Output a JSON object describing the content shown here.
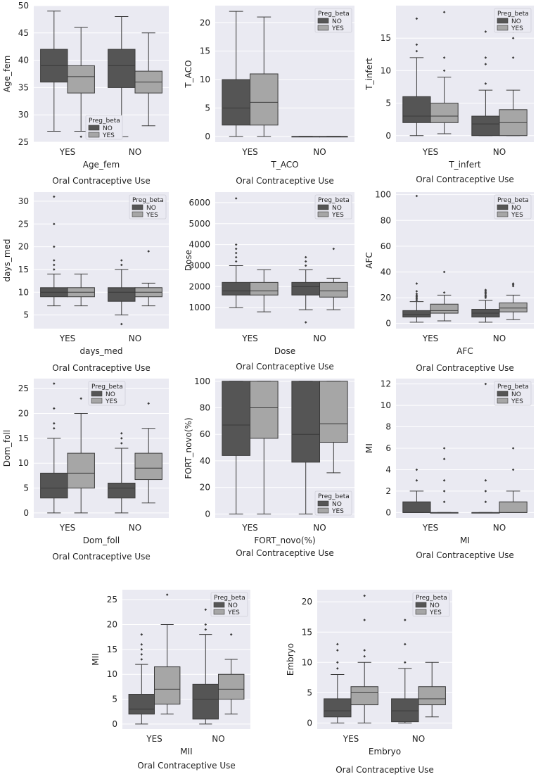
{
  "figure": {
    "caption": "Oral Contraceptive Use",
    "hue_title": "Preg_beta",
    "categories": [
      "YES",
      "NO"
    ],
    "hue_levels": [
      "NO",
      "YES"
    ],
    "colors": {
      "NO": "#555555",
      "YES": "#a6a6a6",
      "background": "#eaeaf2",
      "grid": "#ffffff",
      "line": "#3a3a3a"
    }
  },
  "chart_data": [
    {
      "type": "box",
      "title": "",
      "ylabel": "Age_fem",
      "xlabel": "Age_fem",
      "caption": "Oral Contraceptive Use",
      "ylim": [
        25,
        50
      ],
      "yticks": [
        25,
        30,
        35,
        40,
        45,
        50
      ],
      "categories": [
        "YES",
        "NO"
      ],
      "legend": "lower-center",
      "series": [
        {
          "name": "NO",
          "boxes": [
            {
              "category": "YES",
              "whislo": 27,
              "q1": 36,
              "med": 39,
              "q3": 42,
              "whishi": 49,
              "fliers": []
            },
            {
              "category": "NO",
              "whislo": 26,
              "q1": 35,
              "med": 39,
              "q3": 42,
              "whishi": 48,
              "fliers": []
            }
          ]
        },
        {
          "name": "YES",
          "boxes": [
            {
              "category": "YES",
              "whislo": 27,
              "q1": 34,
              "med": 37,
              "q3": 39,
              "whishi": 46,
              "fliers": [
                26
              ]
            },
            {
              "category": "NO",
              "whislo": 28,
              "q1": 34,
              "med": 36,
              "q3": 38,
              "whishi": 45,
              "fliers": []
            }
          ]
        }
      ]
    },
    {
      "type": "box",
      "title": "",
      "ylabel": "T_ACO",
      "xlabel": "T_ACO",
      "caption": "Oral Contraceptive Use",
      "ylim": [
        -1,
        23
      ],
      "yticks": [
        0,
        5,
        10,
        15,
        20
      ],
      "categories": [
        "YES",
        "NO"
      ],
      "legend": "top-right",
      "series": [
        {
          "name": "NO",
          "boxes": [
            {
              "category": "YES",
              "whislo": 0,
              "q1": 2,
              "med": 5,
              "q3": 10,
              "whishi": 22,
              "fliers": []
            },
            {
              "category": "NO",
              "whislo": 0,
              "q1": 0,
              "med": 0,
              "q3": 0,
              "whishi": 0,
              "fliers": []
            }
          ]
        },
        {
          "name": "YES",
          "boxes": [
            {
              "category": "YES",
              "whislo": 0,
              "q1": 2,
              "med": 6,
              "q3": 11,
              "whishi": 21,
              "fliers": []
            },
            {
              "category": "NO",
              "whislo": 0,
              "q1": 0,
              "med": 0,
              "q3": 0,
              "whishi": 0,
              "fliers": []
            }
          ]
        }
      ]
    },
    {
      "type": "box",
      "title": "",
      "ylabel": "T_infert",
      "xlabel": "T_infert",
      "caption": "Oral Contraceptive Use",
      "ylim": [
        -1,
        20
      ],
      "yticks": [
        0,
        5,
        10,
        15
      ],
      "categories": [
        "YES",
        "NO"
      ],
      "legend": "top-right",
      "series": [
        {
          "name": "NO",
          "boxes": [
            {
              "category": "YES",
              "whislo": 0,
              "q1": 2,
              "med": 3,
              "q3": 6,
              "whishi": 12,
              "fliers": [
                13,
                14,
                18
              ]
            },
            {
              "category": "NO",
              "whislo": 0,
              "q1": 0,
              "med": 1.8,
              "q3": 3,
              "whishi": 7,
              "fliers": [
                8,
                11,
                12,
                16
              ]
            }
          ]
        },
        {
          "name": "YES",
          "boxes": [
            {
              "category": "YES",
              "whislo": 0.3,
              "q1": 2,
              "med": 3,
              "q3": 5,
              "whishi": 9,
              "fliers": [
                10,
                12,
                19
              ]
            },
            {
              "category": "NO",
              "whislo": 0,
              "q1": 0,
              "med": 2,
              "q3": 4,
              "whishi": 7,
              "fliers": [
                12,
                15,
                16
              ]
            }
          ]
        }
      ]
    },
    {
      "type": "box",
      "title": "",
      "ylabel": "days_med",
      "xlabel": "days_med",
      "caption": "Oral Contraceptive Use",
      "ylim": [
        2,
        32
      ],
      "yticks": [
        5,
        10,
        15,
        20,
        25,
        30
      ],
      "categories": [
        "YES",
        "NO"
      ],
      "legend": "top-right",
      "series": [
        {
          "name": "NO",
          "boxes": [
            {
              "category": "YES",
              "whislo": 7,
              "q1": 9,
              "med": 10,
              "q3": 11,
              "whishi": 14,
              "fliers": [
                15,
                16,
                17,
                20,
                25,
                31
              ]
            },
            {
              "category": "NO",
              "whislo": 5,
              "q1": 8,
              "med": 10,
              "q3": 11,
              "whishi": 15,
              "fliers": [
                3,
                16,
                17
              ]
            }
          ]
        },
        {
          "name": "YES",
          "boxes": [
            {
              "category": "YES",
              "whislo": 7,
              "q1": 9,
              "med": 10,
              "q3": 11,
              "whishi": 14,
              "fliers": []
            },
            {
              "category": "NO",
              "whislo": 7,
              "q1": 9,
              "med": 10,
              "q3": 11,
              "whishi": 12,
              "fliers": [
                19
              ]
            }
          ]
        }
      ]
    },
    {
      "type": "box",
      "title": "",
      "ylabel": "Dose",
      "xlabel": "Dose",
      "caption": "Oral Contraceptive Use",
      "ylim": [
        0,
        6500
      ],
      "yticks": [
        1000,
        2000,
        3000,
        4000,
        5000,
        6000
      ],
      "categories": [
        "YES",
        "NO"
      ],
      "legend": "top-right",
      "series": [
        {
          "name": "NO",
          "boxes": [
            {
              "category": "YES",
              "whislo": 1000,
              "q1": 1600,
              "med": 1800,
              "q3": 2200,
              "whishi": 3000,
              "fliers": [
                3200,
                3400,
                3600,
                3800,
                4000,
                6200
              ]
            },
            {
              "category": "NO",
              "whislo": 900,
              "q1": 1600,
              "med": 2000,
              "q3": 2200,
              "whishi": 2800,
              "fliers": [
                300,
                3000,
                3200,
                3400
              ]
            }
          ]
        },
        {
          "name": "YES",
          "boxes": [
            {
              "category": "YES",
              "whislo": 800,
              "q1": 1600,
              "med": 1800,
              "q3": 2200,
              "whishi": 2800,
              "fliers": []
            },
            {
              "category": "NO",
              "whislo": 900,
              "q1": 1500,
              "med": 1800,
              "q3": 2200,
              "whishi": 2400,
              "fliers": [
                3800
              ]
            }
          ]
        }
      ]
    },
    {
      "type": "box",
      "title": "",
      "ylabel": "AFC",
      "xlabel": "AFC",
      "caption": "Oral Contraceptive Use",
      "ylim": [
        -4,
        102
      ],
      "yticks": [
        0,
        20,
        40,
        60,
        80,
        100
      ],
      "categories": [
        "YES",
        "NO"
      ],
      "legend": "top-right",
      "series": [
        {
          "name": "NO",
          "boxes": [
            {
              "category": "YES",
              "whislo": 1,
              "q1": 5,
              "med": 7,
              "q3": 10,
              "whishi": 17,
              "fliers": [
                18,
                19,
                20,
                21,
                22,
                23,
                25,
                31,
                99
              ]
            },
            {
              "category": "NO",
              "whislo": 1,
              "q1": 5,
              "med": 8,
              "q3": 11,
              "whishi": 18,
              "fliers": [
                20,
                21,
                22,
                23,
                24,
                25,
                26
              ]
            }
          ]
        },
        {
          "name": "YES",
          "boxes": [
            {
              "category": "YES",
              "whislo": 2,
              "q1": 8,
              "med": 10,
              "q3": 15,
              "whishi": 22,
              "fliers": [
                24,
                40
              ]
            },
            {
              "category": "NO",
              "whislo": 3,
              "q1": 9,
              "med": 12,
              "q3": 16,
              "whishi": 22,
              "fliers": [
                29,
                30,
                31
              ]
            }
          ]
        }
      ]
    },
    {
      "type": "box",
      "title": "",
      "ylabel": "Dom_foll",
      "xlabel": "Dom_foll",
      "caption": "Oral Contraceptive Use",
      "ylim": [
        -1,
        27
      ],
      "yticks": [
        0,
        5,
        10,
        15,
        20,
        25
      ],
      "categories": [
        "YES",
        "NO"
      ],
      "legend": "top-center",
      "series": [
        {
          "name": "NO",
          "boxes": [
            {
              "category": "YES",
              "whislo": 0,
              "q1": 3,
              "med": 5,
              "q3": 8,
              "whishi": 15,
              "fliers": [
                17,
                18,
                21,
                26
              ]
            },
            {
              "category": "NO",
              "whislo": 0,
              "q1": 3,
              "med": 5,
              "q3": 6,
              "whishi": 13,
              "fliers": [
                14,
                15,
                16,
                22
              ]
            }
          ]
        },
        {
          "name": "YES",
          "boxes": [
            {
              "category": "YES",
              "whislo": 0,
              "q1": 5,
              "med": 8,
              "q3": 12,
              "whishi": 20,
              "fliers": [
                23
              ]
            },
            {
              "category": "NO",
              "whislo": 2,
              "q1": 6.7,
              "med": 9,
              "q3": 12,
              "whishi": 17,
              "fliers": [
                22
              ]
            }
          ]
        }
      ]
    },
    {
      "type": "box",
      "title": "",
      "ylabel": "FORT_novo(%)",
      "xlabel": "FORT_novo(%)",
      "caption": "Oral Contraceptive Use",
      "ylim": [
        -3,
        102
      ],
      "yticks": [
        0,
        20,
        40,
        60,
        80,
        100
      ],
      "categories": [
        "YES",
        "NO"
      ],
      "legend": "lower-right",
      "series": [
        {
          "name": "NO",
          "boxes": [
            {
              "category": "YES",
              "whislo": 0,
              "q1": 44,
              "med": 67,
              "q3": 100,
              "whishi": 100,
              "fliers": []
            },
            {
              "category": "NO",
              "whislo": 0,
              "q1": 39,
              "med": 60,
              "q3": 100,
              "whishi": 100,
              "fliers": []
            }
          ]
        },
        {
          "name": "YES",
          "boxes": [
            {
              "category": "YES",
              "whislo": 0,
              "q1": 57,
              "med": 80,
              "q3": 100,
              "whishi": 100,
              "fliers": []
            },
            {
              "category": "NO",
              "whislo": 31,
              "q1": 54,
              "med": 68,
              "q3": 100,
              "whishi": 100,
              "fliers": []
            }
          ]
        }
      ]
    },
    {
      "type": "box",
      "title": "",
      "ylabel": "MI",
      "xlabel": "MI",
      "caption": "Oral Contraceptive Use",
      "ylim": [
        -0.5,
        12.5
      ],
      "yticks": [
        0,
        2,
        4,
        6,
        8,
        10,
        12
      ],
      "categories": [
        "YES",
        "NO"
      ],
      "legend": "top-right",
      "series": [
        {
          "name": "NO",
          "boxes": [
            {
              "category": "YES",
              "whislo": 0,
              "q1": 0,
              "med": 0,
              "q3": 1,
              "whishi": 2,
              "fliers": [
                3,
                4
              ]
            },
            {
              "category": "NO",
              "whislo": 0,
              "q1": 0,
              "med": 0,
              "q3": 0,
              "whishi": 0,
              "fliers": [
                1,
                2,
                3,
                12
              ]
            }
          ]
        },
        {
          "name": "YES",
          "boxes": [
            {
              "category": "YES",
              "whislo": 0,
              "q1": 0,
              "med": 0,
              "q3": 0,
              "whishi": 0,
              "fliers": [
                1,
                2,
                3,
                5,
                6
              ]
            },
            {
              "category": "NO",
              "whislo": 0,
              "q1": 0,
              "med": 0,
              "q3": 1,
              "whishi": 2,
              "fliers": [
                4,
                6
              ]
            }
          ]
        }
      ]
    },
    {
      "type": "box",
      "title": "",
      "ylabel": "MII",
      "xlabel": "MII",
      "caption": "Oral Contraceptive Use",
      "ylim": [
        -1,
        27
      ],
      "yticks": [
        0,
        5,
        10,
        15,
        20,
        25
      ],
      "categories": [
        "YES",
        "NO"
      ],
      "legend": "top-right",
      "series": [
        {
          "name": "NO",
          "boxes": [
            {
              "category": "YES",
              "whislo": 0,
              "q1": 2,
              "med": 3,
              "q3": 6,
              "whishi": 12,
              "fliers": [
                13,
                14,
                15,
                16,
                18
              ]
            },
            {
              "category": "NO",
              "whislo": 0,
              "q1": 1,
              "med": 5,
              "q3": 8,
              "whishi": 18,
              "fliers": [
                19,
                20,
                23
              ]
            }
          ]
        },
        {
          "name": "YES",
          "boxes": [
            {
              "category": "YES",
              "whislo": 2,
              "q1": 4,
              "med": 7,
              "q3": 11.5,
              "whishi": 20,
              "fliers": [
                26
              ]
            },
            {
              "category": "NO",
              "whislo": 2,
              "q1": 5,
              "med": 7,
              "q3": 10,
              "whishi": 13,
              "fliers": [
                18
              ]
            }
          ]
        }
      ]
    },
    {
      "type": "box",
      "title": "",
      "ylabel": "Embryo",
      "xlabel": "Embryo",
      "caption": "Oral Contraceptive Use",
      "ylim": [
        -1,
        22
      ],
      "yticks": [
        0,
        5,
        10,
        15,
        20
      ],
      "categories": [
        "YES",
        "NO"
      ],
      "legend": "top-right",
      "series": [
        {
          "name": "NO",
          "boxes": [
            {
              "category": "YES",
              "whislo": 0,
              "q1": 1,
              "med": 2,
              "q3": 4,
              "whishi": 8,
              "fliers": [
                9,
                10,
                12,
                13
              ]
            },
            {
              "category": "NO",
              "whislo": 0,
              "q1": 0.2,
              "med": 2,
              "q3": 4,
              "whishi": 9,
              "fliers": [
                10,
                13,
                17
              ]
            }
          ]
        },
        {
          "name": "YES",
          "boxes": [
            {
              "category": "YES",
              "whislo": 0,
              "q1": 3,
              "med": 5,
              "q3": 6,
              "whishi": 10,
              "fliers": [
                11,
                12,
                17,
                21
              ]
            },
            {
              "category": "NO",
              "whislo": 1,
              "q1": 3,
              "med": 4,
              "q3": 6,
              "whishi": 10,
              "fliers": []
            }
          ]
        }
      ]
    }
  ]
}
